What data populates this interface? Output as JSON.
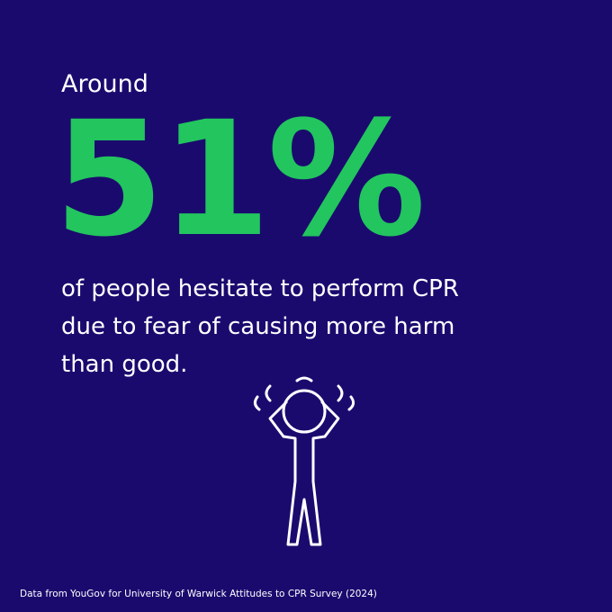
{
  "intro": "Around",
  "stat": "51%",
  "body_lines": [
    "of people hesitate to perform CPR",
    "due to fear of causing more harm",
    "than good."
  ],
  "source": "Data from YouGov for University of Warwick Attitudes to CPR Survey (2024)"
}
